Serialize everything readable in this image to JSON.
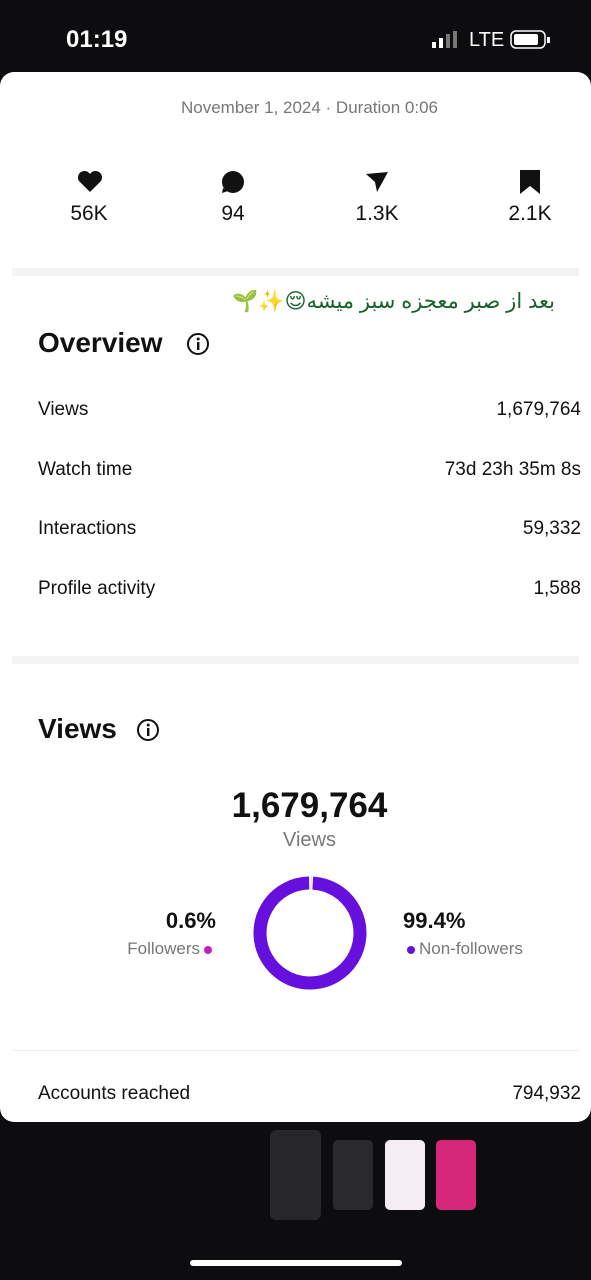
{
  "status_bar": {
    "time": "01:19",
    "network": "LTE"
  },
  "post": {
    "date_line": "November 1, 2024 · Duration 0:06",
    "stats": [
      "56K",
      "94",
      "1.3K",
      "2.1K"
    ],
    "caption": "بعد از صبر معجزه سبز میشه😌✨🌱"
  },
  "overview": {
    "title": "Overview",
    "rows": [
      [
        "Views",
        "1,679,764"
      ],
      [
        "Watch time",
        "73d 23h 35m 8s"
      ],
      [
        "Interactions",
        "59,332"
      ],
      [
        "Profile activity",
        "1,588"
      ]
    ]
  },
  "views": {
    "title": "Views",
    "total": "1,679,764",
    "total_label": "Views",
    "segments": [
      {
        "label": "Followers",
        "value": 0.6,
        "value_label": "0.6%",
        "color": "#c21dbf"
      },
      {
        "label": "Non-followers",
        "value": 99.4,
        "value_label": "99.4%",
        "color": "#6610dd"
      }
    ],
    "accounts_reached": {
      "label": "Accounts reached",
      "value": "794,932"
    }
  }
}
